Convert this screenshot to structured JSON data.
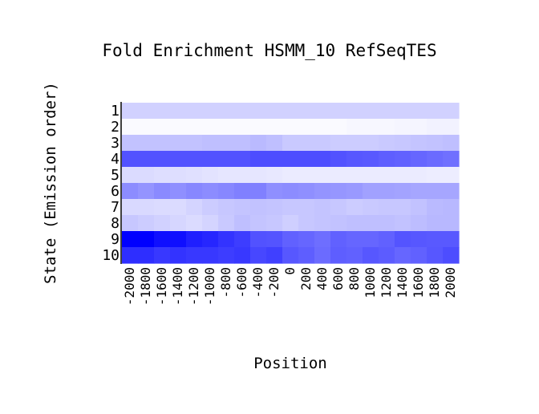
{
  "chart_data": {
    "type": "heatmap",
    "title": "Fold Enrichment HSMM_10 RefSeqTES",
    "xlabel": "Position",
    "ylabel": "State (Emission order)",
    "x": [
      -2000,
      -1800,
      -1600,
      -1400,
      -1200,
      -1000,
      -800,
      -600,
      -400,
      -200,
      0,
      200,
      400,
      600,
      800,
      1000,
      1200,
      1400,
      1600,
      1800,
      2000
    ],
    "x_tick_labels": [
      "-2000",
      "-1800",
      "-1600",
      "-1400",
      "-1200",
      "-1000",
      "-800",
      "-600",
      "-400",
      "-200",
      "0",
      "200",
      "400",
      "600",
      "800",
      "1000",
      "1200",
      "1400",
      "1600",
      "1800",
      "2000"
    ],
    "y": [
      "1",
      "2",
      "3",
      "4",
      "5",
      "6",
      "7",
      "8",
      "9",
      "10"
    ],
    "color_low": "#ffffff",
    "color_high": "#0000ff",
    "values": [
      [
        0.18,
        0.18,
        0.18,
        0.18,
        0.18,
        0.18,
        0.18,
        0.18,
        0.18,
        0.18,
        0.18,
        0.18,
        0.18,
        0.18,
        0.18,
        0.18,
        0.18,
        0.18,
        0.18,
        0.18,
        0.18
      ],
      [
        0.02,
        0.02,
        0.02,
        0.02,
        0.02,
        0.02,
        0.02,
        0.02,
        0.02,
        0.02,
        0.02,
        0.02,
        0.02,
        0.02,
        0.03,
        0.03,
        0.03,
        0.04,
        0.04,
        0.05,
        0.05
      ],
      [
        0.24,
        0.24,
        0.24,
        0.24,
        0.24,
        0.25,
        0.25,
        0.25,
        0.27,
        0.25,
        0.21,
        0.21,
        0.21,
        0.2,
        0.2,
        0.2,
        0.21,
        0.22,
        0.23,
        0.24,
        0.25
      ],
      [
        0.68,
        0.68,
        0.68,
        0.68,
        0.68,
        0.68,
        0.68,
        0.68,
        0.7,
        0.7,
        0.7,
        0.7,
        0.7,
        0.68,
        0.66,
        0.65,
        0.63,
        0.62,
        0.6,
        0.58,
        0.56
      ],
      [
        0.14,
        0.14,
        0.13,
        0.13,
        0.12,
        0.11,
        0.1,
        0.1,
        0.1,
        0.09,
        0.08,
        0.08,
        0.08,
        0.08,
        0.08,
        0.08,
        0.08,
        0.08,
        0.08,
        0.07,
        0.07
      ],
      [
        0.45,
        0.42,
        0.46,
        0.44,
        0.47,
        0.45,
        0.47,
        0.5,
        0.5,
        0.44,
        0.45,
        0.44,
        0.42,
        0.41,
        0.4,
        0.37,
        0.37,
        0.36,
        0.35,
        0.35,
        0.35
      ],
      [
        0.15,
        0.15,
        0.14,
        0.14,
        0.17,
        0.2,
        0.22,
        0.23,
        0.24,
        0.23,
        0.22,
        0.22,
        0.23,
        0.22,
        0.2,
        0.21,
        0.22,
        0.22,
        0.24,
        0.27,
        0.28
      ],
      [
        0.22,
        0.2,
        0.18,
        0.16,
        0.14,
        0.17,
        0.21,
        0.25,
        0.23,
        0.22,
        0.19,
        0.22,
        0.23,
        0.24,
        0.25,
        0.25,
        0.25,
        0.24,
        0.26,
        0.28,
        0.28
      ],
      [
        1.0,
        1.0,
        0.94,
        0.94,
        0.88,
        0.85,
        0.8,
        0.76,
        0.68,
        0.67,
        0.62,
        0.6,
        0.57,
        0.62,
        0.6,
        0.6,
        0.62,
        0.67,
        0.66,
        0.65,
        0.65
      ],
      [
        0.82,
        0.82,
        0.78,
        0.8,
        0.78,
        0.78,
        0.76,
        0.78,
        0.72,
        0.75,
        0.66,
        0.63,
        0.58,
        0.63,
        0.62,
        0.66,
        0.64,
        0.6,
        0.62,
        0.66,
        0.7
      ]
    ]
  }
}
